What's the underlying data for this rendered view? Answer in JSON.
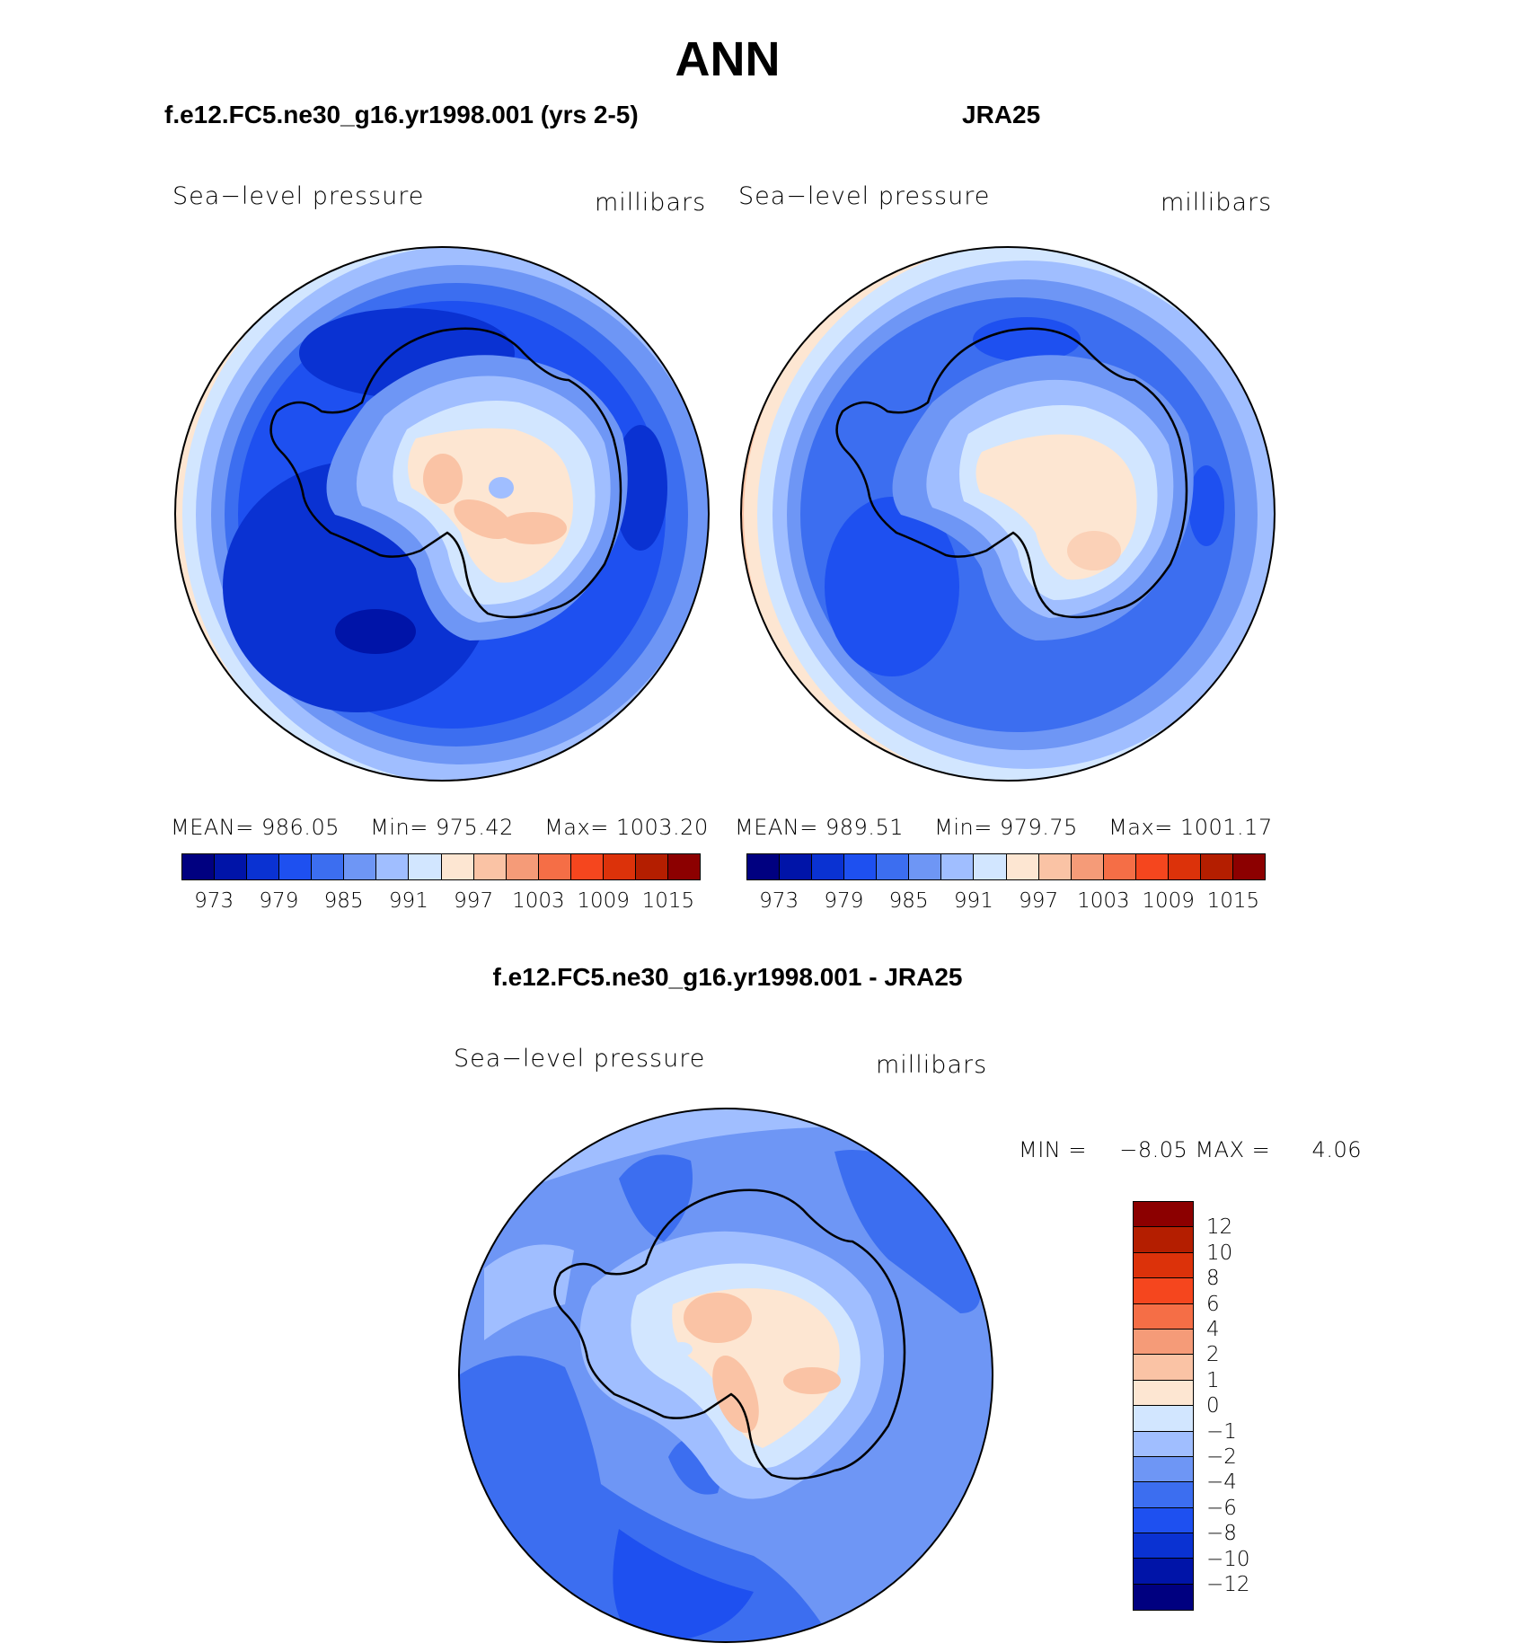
{
  "title": "ANN",
  "panels": {
    "model": {
      "title": "f.e12.FC5.ne30_g16.yr1998.001 (yrs 2-5)",
      "variable": "Sea−level pressure",
      "units": "millibars",
      "mean_label": "MEAN=",
      "mean": "986.05",
      "min_label": "Min=",
      "min": "975.42",
      "max_label": "Max=",
      "max": "1003.20"
    },
    "obs": {
      "title": "JRA25",
      "variable": "Sea−level pressure",
      "units": "millibars",
      "mean_label": "MEAN=",
      "mean": "989.51",
      "min_label": "Min=",
      "min": "979.75",
      "max_label": "Max=",
      "max": "1001.17"
    },
    "diff": {
      "title": "f.e12.FC5.ne30_g16.yr1998.001 - JRA25",
      "variable": "Sea−level pressure",
      "units": "millibars",
      "min_label": "MIN =",
      "min": "−8.05",
      "max_label": "MAX =",
      "max": "4.06"
    }
  },
  "colorbar_abs": {
    "colors": [
      "#000080",
      "#0014a8",
      "#0a32d2",
      "#1e50f0",
      "#3c6ef0",
      "#6e96f5",
      "#a0beff",
      "#d2e6ff",
      "#fde6d2",
      "#fac3a5",
      "#f59b78",
      "#f56e46",
      "#f5461e",
      "#dc320a",
      "#b41e00",
      "#8c0000"
    ],
    "tick_labels": [
      "973",
      "979",
      "985",
      "991",
      "997",
      "1003",
      "1009",
      "1015"
    ]
  },
  "colorbar_diff": {
    "colors": [
      "#8c0000",
      "#b41e00",
      "#dc320a",
      "#f5461e",
      "#f56e46",
      "#f59b78",
      "#fac3a5",
      "#fde6d2",
      "#d2e6ff",
      "#a0beff",
      "#6e96f5",
      "#3c6ef0",
      "#1e50f0",
      "#0a32d2",
      "#0014a8",
      "#000080"
    ],
    "tick_labels": [
      "12",
      "10",
      "8",
      "6",
      "4",
      "2",
      "1",
      "0",
      "−1",
      "−2",
      "−4",
      "−6",
      "−8",
      "−10",
      "−12"
    ]
  }
}
